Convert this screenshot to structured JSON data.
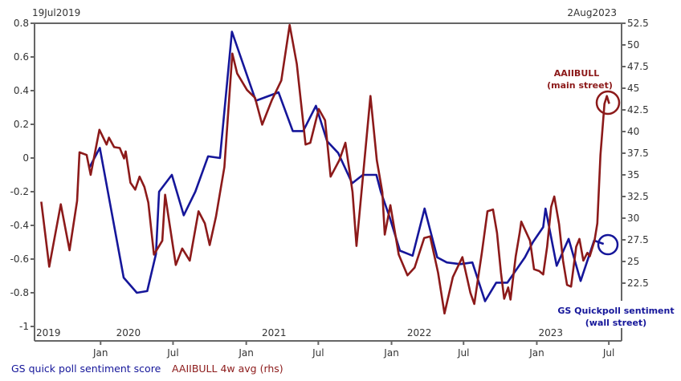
{
  "chart_data": {
    "type": "line",
    "title": "",
    "date_range": {
      "start_label": "19Jul2019",
      "end_label": "2Aug2023",
      "start": "2019-07-19",
      "end": "2023-08-02"
    },
    "left_axis": {
      "ylim": [
        -1,
        0.8
      ],
      "ticks": [
        0.8,
        0.6,
        0.4,
        0.2,
        0,
        -0.2,
        -0.4,
        -0.6,
        -0.8,
        -1
      ],
      "tick_labels": [
        "0.8",
        "0.6",
        "0.4",
        "0.2",
        "0",
        "-0.2",
        "-0.4",
        "-0.6",
        "-0.8",
        "-1"
      ]
    },
    "right_axis": {
      "ylim": [
        20,
        52.5
      ],
      "ticks": [
        52.5,
        50,
        47.5,
        45,
        42.5,
        40,
        37.5,
        35,
        32.5,
        30,
        27.5,
        25,
        22.5
      ],
      "tick_labels": [
        "52.5",
        "50",
        "47.5",
        "45",
        "42.5",
        "40",
        "37.5",
        "35",
        "32.5",
        "30",
        "27.5",
        "25",
        "22.5"
      ]
    },
    "x_month_ticks": [
      {
        "date": "2020-01-01",
        "label": "Jan"
      },
      {
        "date": "2020-07-01",
        "label": "Jul"
      },
      {
        "date": "2021-01-01",
        "label": "Jan"
      },
      {
        "date": "2021-07-01",
        "label": "Jul"
      },
      {
        "date": "2022-01-01",
        "label": "Jan"
      },
      {
        "date": "2022-07-01",
        "label": "Jul"
      },
      {
        "date": "2023-01-01",
        "label": "Jan"
      },
      {
        "date": "2023-07-01",
        "label": "Jul"
      }
    ],
    "x_year_labels": [
      {
        "date": "2019-07-19",
        "label": "2019"
      },
      {
        "date": "2020-02-05",
        "label": "2020"
      },
      {
        "date": "2021-02-05",
        "label": "2021"
      },
      {
        "date": "2022-02-05",
        "label": "2022"
      },
      {
        "date": "2023-01-01",
        "label": "2023"
      }
    ],
    "grid": false,
    "legend_position": "bottom",
    "series": [
      {
        "name": "GS quick poll sentiment score",
        "axis": "left",
        "color": "#15169a",
        "points": [
          [
            "2019-12-03",
            -0.06
          ],
          [
            "2019-12-30",
            0.06
          ],
          [
            "2020-02-28",
            -0.71
          ],
          [
            "2020-04-01",
            -0.8
          ],
          [
            "2020-04-27",
            -0.79
          ],
          [
            "2020-05-19",
            -0.57
          ],
          [
            "2020-05-27",
            -0.2
          ],
          [
            "2020-06-28",
            -0.1
          ],
          [
            "2020-07-28",
            -0.34
          ],
          [
            "2020-08-26",
            -0.2
          ],
          [
            "2020-09-27",
            0.01
          ],
          [
            "2020-10-27",
            0.0
          ],
          [
            "2020-11-26",
            0.75
          ],
          [
            "2021-01-25",
            0.34
          ],
          [
            "2021-03-23",
            0.39
          ],
          [
            "2021-04-28",
            0.16
          ],
          [
            "2021-05-24",
            0.16
          ],
          [
            "2021-06-25",
            0.31
          ],
          [
            "2021-07-23",
            0.1
          ],
          [
            "2021-08-20",
            0.03
          ],
          [
            "2021-09-24",
            -0.15
          ],
          [
            "2021-10-21",
            -0.1
          ],
          [
            "2021-11-24",
            -0.1
          ],
          [
            "2021-12-05",
            -0.2
          ],
          [
            "2021-12-27",
            -0.35
          ],
          [
            "2022-01-22",
            -0.55
          ],
          [
            "2022-02-23",
            -0.58
          ],
          [
            "2022-03-25",
            -0.3
          ],
          [
            "2022-04-26",
            -0.59
          ],
          [
            "2022-05-20",
            -0.62
          ],
          [
            "2022-06-23",
            -0.63
          ],
          [
            "2022-07-23",
            -0.62
          ],
          [
            "2022-08-24",
            -0.85
          ],
          [
            "2022-09-21",
            -0.74
          ],
          [
            "2022-10-19",
            -0.74
          ],
          [
            "2022-12-02",
            -0.59
          ],
          [
            "2022-12-22",
            -0.5
          ],
          [
            "2023-01-17",
            -0.41
          ],
          [
            "2023-01-23",
            -0.3
          ],
          [
            "2023-02-20",
            -0.64
          ],
          [
            "2023-03-22",
            -0.48
          ],
          [
            "2023-04-21",
            -0.73
          ],
          [
            "2023-05-25",
            -0.49
          ],
          [
            "2023-06-18",
            -0.51
          ]
        ]
      },
      {
        "name": "AAIIBULL 4w avg (rhs)",
        "axis": "right",
        "color": "#8c1a1a",
        "points": [
          [
            "2019-08-05",
            31.9
          ],
          [
            "2019-08-25",
            24.4
          ],
          [
            "2019-09-23",
            31.6
          ],
          [
            "2019-10-15",
            26.3
          ],
          [
            "2019-11-03",
            32.0
          ],
          [
            "2019-11-09",
            37.6
          ],
          [
            "2019-11-27",
            37.3
          ],
          [
            "2019-12-07",
            35.0
          ],
          [
            "2019-12-29",
            40.2
          ],
          [
            "2020-01-16",
            38.5
          ],
          [
            "2020-01-22",
            39.3
          ],
          [
            "2020-02-04",
            38.2
          ],
          [
            "2020-02-18",
            38.1
          ],
          [
            "2020-02-29",
            36.9
          ],
          [
            "2020-03-04",
            37.7
          ],
          [
            "2020-03-16",
            34.1
          ],
          [
            "2020-03-28",
            33.3
          ],
          [
            "2020-04-08",
            34.8
          ],
          [
            "2020-04-20",
            33.6
          ],
          [
            "2020-04-30",
            31.8
          ],
          [
            "2020-05-14",
            25.8
          ],
          [
            "2020-06-04",
            27.4
          ],
          [
            "2020-06-11",
            32.7
          ],
          [
            "2020-07-08",
            24.6
          ],
          [
            "2020-07-24",
            26.5
          ],
          [
            "2020-08-12",
            25.1
          ],
          [
            "2020-09-03",
            30.8
          ],
          [
            "2020-09-19",
            29.4
          ],
          [
            "2020-10-01",
            26.9
          ],
          [
            "2020-10-17",
            30.2
          ],
          [
            "2020-10-27",
            32.9
          ],
          [
            "2020-11-07",
            35.9
          ],
          [
            "2020-11-27",
            49.0
          ],
          [
            "2020-12-09",
            46.7
          ],
          [
            "2021-01-03",
            44.8
          ],
          [
            "2021-01-23",
            43.9
          ],
          [
            "2021-02-10",
            40.8
          ],
          [
            "2021-03-06",
            43.6
          ],
          [
            "2021-03-30",
            45.9
          ],
          [
            "2021-04-20",
            52.3
          ],
          [
            "2021-05-08",
            47.8
          ],
          [
            "2021-05-30",
            38.5
          ],
          [
            "2021-06-11",
            38.7
          ],
          [
            "2021-07-02",
            42.6
          ],
          [
            "2021-07-18",
            41.3
          ],
          [
            "2021-08-01",
            34.8
          ],
          [
            "2021-08-23",
            36.7
          ],
          [
            "2021-09-07",
            38.7
          ],
          [
            "2021-09-25",
            33.0
          ],
          [
            "2021-10-05",
            26.8
          ],
          [
            "2021-11-09",
            44.1
          ],
          [
            "2021-11-25",
            36.7
          ],
          [
            "2021-12-09",
            33.0
          ],
          [
            "2021-12-15",
            28.1
          ],
          [
            "2021-12-29",
            31.5
          ],
          [
            "2022-01-19",
            25.8
          ],
          [
            "2022-02-10",
            23.4
          ],
          [
            "2022-02-28",
            24.3
          ],
          [
            "2022-03-24",
            27.7
          ],
          [
            "2022-04-08",
            27.9
          ],
          [
            "2022-04-28",
            23.7
          ],
          [
            "2022-05-14",
            19.0
          ],
          [
            "2022-06-04",
            23.2
          ],
          [
            "2022-06-28",
            25.5
          ],
          [
            "2022-07-18",
            21.4
          ],
          [
            "2022-07-28",
            20.1
          ],
          [
            "2022-08-16",
            26.0
          ],
          [
            "2022-08-30",
            30.8
          ],
          [
            "2022-09-13",
            31.0
          ],
          [
            "2022-09-23",
            28.3
          ],
          [
            "2022-10-03",
            23.7
          ],
          [
            "2022-10-11",
            20.7
          ],
          [
            "2022-10-21",
            22.0
          ],
          [
            "2022-10-27",
            20.6
          ],
          [
            "2022-11-09",
            25.6
          ],
          [
            "2022-11-19",
            28.3
          ],
          [
            "2022-11-23",
            29.6
          ],
          [
            "2022-12-15",
            27.4
          ],
          [
            "2022-12-25",
            24.1
          ],
          [
            "2023-01-07",
            23.9
          ],
          [
            "2023-01-17",
            23.5
          ],
          [
            "2023-01-27",
            26.7
          ],
          [
            "2023-02-06",
            31.3
          ],
          [
            "2023-02-14",
            32.5
          ],
          [
            "2023-02-26",
            29.3
          ],
          [
            "2023-03-08",
            25.1
          ],
          [
            "2023-03-18",
            22.3
          ],
          [
            "2023-03-28",
            22.1
          ],
          [
            "2023-04-10",
            26.7
          ],
          [
            "2023-04-18",
            27.6
          ],
          [
            "2023-04-28",
            25.1
          ],
          [
            "2023-05-08",
            26.0
          ],
          [
            "2023-05-14",
            25.6
          ],
          [
            "2023-05-26",
            27.4
          ],
          [
            "2023-06-02",
            29.4
          ],
          [
            "2023-06-10",
            37.3
          ],
          [
            "2023-06-20",
            43.2
          ],
          [
            "2023-06-26",
            44.1
          ],
          [
            "2023-07-02",
            43.2
          ]
        ]
      }
    ],
    "annotations": {
      "red": {
        "line1": "AAIIBULL",
        "line2": "(main street)",
        "color": "#8c1a1a"
      },
      "blue": {
        "line1": "GS Quickpoll sentiment",
        "line2": "(wall street)",
        "color": "#15169a"
      }
    },
    "legend": [
      {
        "label": "GS quick poll sentiment score",
        "color": "#15169a"
      },
      {
        "label": "AAIIBULL 4w avg (rhs)",
        "color": "#8c1a1a"
      }
    ]
  }
}
